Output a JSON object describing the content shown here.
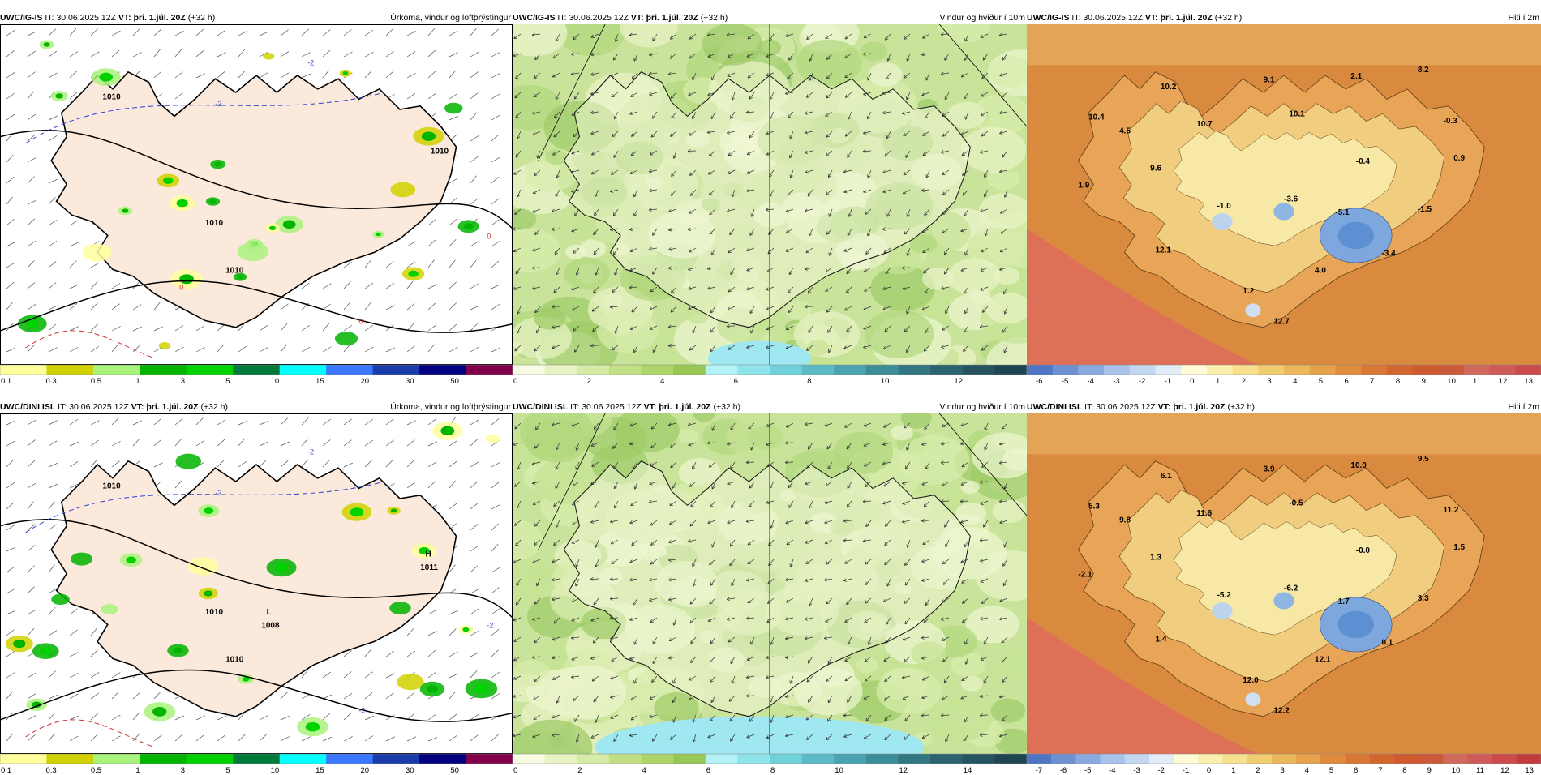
{
  "rows": [
    {
      "panels": [
        {
          "model": "UWC/IG-IS",
          "it_label": "IT:",
          "it_value": "30.06.2025 12Z",
          "vt_label": "VT:",
          "vt_value": "þri. 1.júl. 20Z",
          "lead": "(+32 h)",
          "field": "Úrkoma, vindur og loftþrýstingur"
        },
        {
          "model": "UWC/IG-IS",
          "it_label": "IT:",
          "it_value": "30.06.2025 12Z",
          "vt_label": "VT:",
          "vt_value": "þri. 1.júl. 20Z",
          "lead": "(+32 h)",
          "field": "Vindur og hviður í 10m"
        },
        {
          "model": "UWC/IG-IS",
          "it_label": "IT:",
          "it_value": "30.06.2025 12Z",
          "vt_label": "VT:",
          "vt_value": "þri. 1.júl. 20Z",
          "lead": "(+32 h)",
          "field": "Hiti í 2m"
        }
      ],
      "precip_colorbar": [
        "0.1",
        "0.3",
        "0.5",
        "1",
        "3",
        "5",
        "10",
        "15",
        "20",
        "30",
        "50"
      ],
      "wind_colorbar": [
        "0",
        "2",
        "4",
        "6",
        "8",
        "10",
        "12"
      ],
      "temp_colorbar": [
        "-6",
        "-5",
        "-4",
        "-3",
        "-2",
        "-1",
        "0",
        "1",
        "2",
        "3",
        "4",
        "5",
        "6",
        "7",
        "8",
        "9",
        "10",
        "11",
        "12",
        "13"
      ],
      "temp_labels": [
        "10.4",
        "10.2",
        "9.1",
        "2.1",
        "8.2",
        "4.5",
        "10.7",
        "10.1",
        "-0.3",
        "9.6",
        "-0.4",
        "0.9",
        "1.9",
        "-1.0",
        "-3.6",
        "-5.1",
        "-1.5",
        "12.1",
        "-3.4",
        "4.0",
        "1.2",
        "12.7"
      ],
      "pressure_labels": [
        "1010",
        "1010",
        "1010",
        "1010"
      ],
      "isotherm_labels": [
        "-2",
        "-2",
        "0",
        "0",
        "0"
      ]
    },
    {
      "panels": [
        {
          "model": "UWC/DINI ISL",
          "it_label": "IT:",
          "it_value": "30.06.2025 12Z",
          "vt_label": "VT:",
          "vt_value": "þri. 1.júl. 20Z",
          "lead": "(+32 h)",
          "field": "Úrkoma, vindur og loftþrýstingur"
        },
        {
          "model": "UWC/DINI ISL",
          "it_label": "IT:",
          "it_value": "30.06.2025 12Z",
          "vt_label": "VT:",
          "vt_value": "þri. 1.júl. 20Z",
          "lead": "(+32 h)",
          "field": "Vindur og hviður í 10m"
        },
        {
          "model": "UWC/DINI ISL",
          "it_label": "IT:",
          "it_value": "30.06.2025 12Z",
          "vt_label": "VT:",
          "vt_value": "þri. 1.júl. 20Z",
          "lead": "(+32 h)",
          "field": "Hiti í 2m"
        }
      ],
      "precip_colorbar": [
        "0.1",
        "0.3",
        "0.5",
        "1",
        "3",
        "5",
        "10",
        "15",
        "20",
        "30",
        "50"
      ],
      "wind_colorbar": [
        "0",
        "2",
        "4",
        "6",
        "8",
        "10",
        "12",
        "14"
      ],
      "temp_colorbar": [
        "-7",
        "-6",
        "-5",
        "-4",
        "-3",
        "-2",
        "-1",
        "0",
        "1",
        "2",
        "3",
        "4",
        "5",
        "6",
        "7",
        "8",
        "9",
        "10",
        "11",
        "12",
        "13"
      ],
      "temp_labels": [
        "5.3",
        "6.1",
        "3.9",
        "10.0",
        "9.5",
        "9.8",
        "11.6",
        "-0.5",
        "11.2",
        "1.3",
        "-0.0",
        "1.5",
        "-2.1",
        "-5.2",
        "-6.2",
        "-1.7",
        "3.3",
        "1.4",
        "0.1",
        "12.1",
        "12.0",
        "12.2"
      ],
      "pressure_labels": [
        "1010",
        "1010",
        "1010"
      ],
      "high": {
        "letter": "H",
        "value": "1011"
      },
      "low": {
        "letter": "L",
        "value": "1008"
      },
      "isotherm_labels": [
        "-2",
        "-2",
        "-2",
        "-2"
      ]
    }
  ],
  "colors": {
    "precip": [
      "#ffff9c",
      "#d1d100",
      "#a9f27c",
      "#00b400",
      "#00d200",
      "#007b3c",
      "#00ffff",
      "#3c78ff",
      "#1a3ca8",
      "#000080",
      "#82004b",
      "#ff1493",
      "#ff0000"
    ],
    "land_precip_bg": "#fbe9dc",
    "sea_precip_bg": "#ffffff"
  }
}
